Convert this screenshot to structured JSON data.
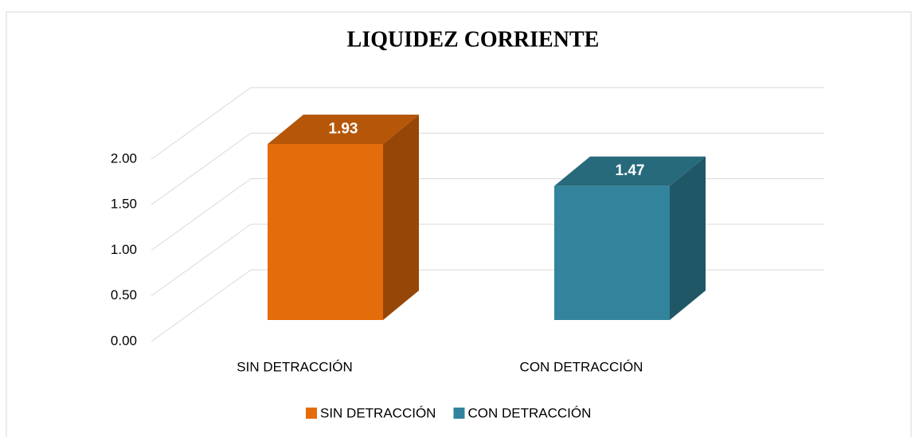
{
  "chart_data": {
    "type": "bar3d",
    "title": "LIQUIDEZ CORRIENTE",
    "categories": [
      "SIN DETRACCIÓN",
      "CON DETRACCIÓN"
    ],
    "series": [
      {
        "name": "SIN DETRACCIÓN",
        "color": "#E46C0A",
        "values": [
          1.93,
          null
        ]
      },
      {
        "name": "CON DETRACCIÓN",
        "color": "#31849B",
        "values": [
          null,
          1.47
        ]
      }
    ],
    "ylim": [
      0,
      2
    ],
    "yticks": [
      {
        "value": 0,
        "label": "0.00"
      },
      {
        "value": 0.5,
        "label": "0.50"
      },
      {
        "value": 1,
        "label": "1.00"
      },
      {
        "value": 1.5,
        "label": "1.50"
      },
      {
        "value": 2,
        "label": "2.00"
      }
    ],
    "grid": true,
    "legend": "bottom"
  }
}
